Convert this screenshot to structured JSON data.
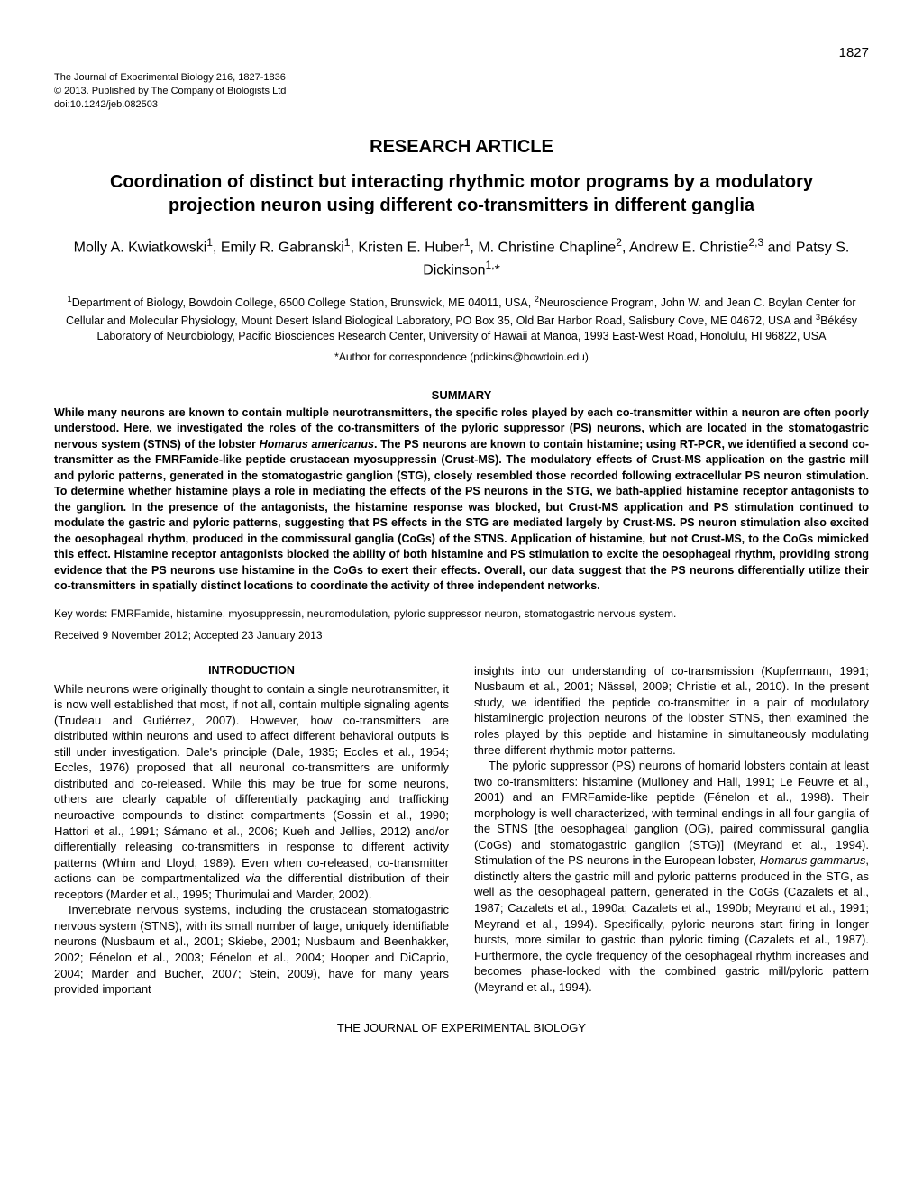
{
  "page_number": "1827",
  "journal": {
    "line1": "The Journal of Experimental Biology 216, 1827-1836",
    "line2": "© 2013. Published by The Company of Biologists Ltd",
    "line3": "doi:10.1242/jeb.082503"
  },
  "article_type": "RESEARCH ARTICLE",
  "title": "Coordination of distinct but interacting rhythmic motor programs by a modulatory projection neuron using different co-transmitters in different ganglia",
  "authors_html": "Molly A. Kwiatkowski<sup>1</sup>, Emily R. Gabranski<sup>1</sup>, Kristen E. Huber<sup>1</sup>, M. Christine Chapline<sup>2</sup>, Andrew E. Christie<sup>2,3</sup> and Patsy S. Dickinson<sup>1,</sup>*",
  "affiliations_html": "<sup>1</sup>Department of Biology, Bowdoin College, 6500 College Station, Brunswick, ME 04011, USA, <sup>2</sup>Neuroscience Program, John W. and Jean C. Boylan Center for Cellular and Molecular Physiology, Mount Desert Island Biological Laboratory, PO Box 35, Old Bar Harbor Road, Salisbury Cove, ME 04672, USA and <sup>3</sup>Békésy Laboratory of Neurobiology, Pacific Biosciences Research Center, University of Hawaii at Manoa, 1993 East-West Road, Honolulu, HI 96822, USA",
  "correspondence": "*Author for correspondence (pdickins@bowdoin.edu)",
  "summary_heading": "SUMMARY",
  "summary_html": "While many neurons are known to contain multiple neurotransmitters, the specific roles played by each co-transmitter within a neuron are often poorly understood. Here, we investigated the roles of the co-transmitters of the pyloric suppressor (PS) neurons, which are located in the stomatogastric nervous system (STNS) of the lobster <span class=\"italic\">Homarus americanus</span>. The PS neurons are known to contain histamine; using RT-PCR, we identified a second co-transmitter as the FMRFamide-like peptide crustacean myosuppressin (Crust-MS). The modulatory effects of Crust-MS application on the gastric mill and pyloric patterns, generated in the stomatogastric ganglion (STG), closely resembled those recorded following extracellular PS neuron stimulation. To determine whether histamine plays a role in mediating the effects of the PS neurons in the STG, we bath-applied histamine receptor antagonists to the ganglion. In the presence of the antagonists, the histamine response was blocked, but Crust-MS application and PS stimulation continued to modulate the gastric and pyloric patterns, suggesting that PS effects in the STG are mediated largely by Crust-MS. PS neuron stimulation also excited the oesophageal rhythm, produced in the commissural ganglia (CoGs) of the STNS. Application of histamine, but not Crust-MS, to the CoGs mimicked this effect. Histamine receptor antagonists blocked the ability of both histamine and PS stimulation to excite the oesophageal rhythm, providing strong evidence that the PS neurons use histamine in the CoGs to exert their effects. Overall, our data suggest that the PS neurons differentially utilize their co-transmitters in spatially distinct locations to coordinate the activity of three independent networks.",
  "keywords": "Key words: FMRFamide, histamine, myosuppressin, neuromodulation, pyloric suppressor neuron, stomatogastric nervous system.",
  "dates": "Received 9 November 2012; Accepted 23 January 2013",
  "intro_heading": "INTRODUCTION",
  "col1_p1_html": "While neurons were originally thought to contain a single neurotransmitter, it is now well established that most, if not all, contain multiple signaling agents (Trudeau and Gutiérrez, 2007). However, how co-transmitters are distributed within neurons and used to affect different behavioral outputs is still under investigation. Dale's principle (Dale, 1935; Eccles et al., 1954; Eccles, 1976) proposed that all neuronal co-transmitters are uniformly distributed and co-released. While this may be true for some neurons, others are clearly capable of differentially packaging and trafficking neuroactive compounds to distinct compartments (Sossin et al., 1990; Hattori et al., 1991; Sámano et al., 2006; Kueh and Jellies, 2012) and/or differentially releasing co-transmitters in response to different activity patterns (Whim and Lloyd, 1989). Even when co-released, co-transmitter actions can be compartmentalized <span class=\"italic\">via</span> the differential distribution of their receptors (Marder et al., 1995; Thurimulai and Marder, 2002).",
  "col1_p2_html": "Invertebrate nervous systems, including the crustacean stomatogastric nervous system (STNS), with its small number of large, uniquely identifiable neurons (Nusbaum et al., 2001; Skiebe, 2001; Nusbaum and Beenhakker, 2002; Fénelon et al., 2003; Fénelon et al., 2004; Hooper and DiCaprio, 2004; Marder and Bucher, 2007; Stein, 2009), have for many years provided important",
  "col2_p1_html": "insights into our understanding of co-transmission (Kupfermann, 1991; Nusbaum et al., 2001; Nässel, 2009; Christie et al., 2010). In the present study, we identified the peptide co-transmitter in a pair of modulatory histaminergic projection neurons of the lobster STNS, then examined the roles played by this peptide and histamine in simultaneously modulating three different rhythmic motor patterns.",
  "col2_p2_html": "The pyloric suppressor (PS) neurons of homarid lobsters contain at least two co-transmitters: histamine (Mulloney and Hall, 1991; Le Feuvre et al., 2001) and an FMRFamide-like peptide (Fénelon et al., 1998). Their morphology is well characterized, with terminal endings in all four ganglia of the STNS [the oesophageal ganglion (OG), paired commissural ganglia (CoGs) and stomatogastric ganglion (STG)] (Meyrand et al., 1994). Stimulation of the PS neurons in the European lobster, <span class=\"italic\">Homarus gammarus</span>, distinctly alters the gastric mill and pyloric patterns produced in the STG, as well as the oesophageal pattern, generated in the CoGs (Cazalets et al., 1987; Cazalets et al., 1990a; Cazalets et al., 1990b; Meyrand et al., 1991; Meyrand et al., 1994). Specifically, pyloric neurons start firing in longer bursts, more similar to gastric than pyloric timing (Cazalets et al., 1987). Furthermore, the cycle frequency of the oesophageal rhythm increases and becomes phase-locked with the combined gastric mill/pyloric pattern (Meyrand et al., 1994).",
  "footer": "THE JOURNAL OF EXPERIMENTAL BIOLOGY"
}
